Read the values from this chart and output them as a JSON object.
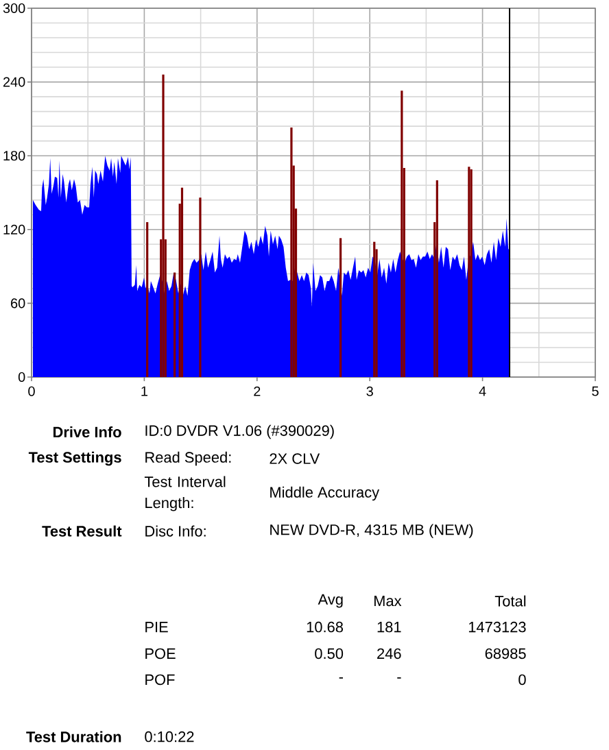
{
  "chart_data": {
    "type": "area",
    "xlim": [
      0,
      5
    ],
    "xticks": [
      0,
      1,
      2,
      3,
      4,
      5
    ],
    "ylim": [
      0,
      300
    ],
    "yticks": [
      0,
      60,
      120,
      180,
      240,
      300
    ],
    "grid": true,
    "series": [
      {
        "color": "#0000ff",
        "x": [
          0.012,
          0.036,
          0.065,
          0.085,
          0.093,
          0.105,
          0.126,
          0.138,
          0.154,
          0.166,
          0.178,
          0.195,
          0.207,
          0.227,
          0.239,
          0.247,
          0.26,
          0.276,
          0.288,
          0.308,
          0.328,
          0.341,
          0.357,
          0.377,
          0.393,
          0.41,
          0.43,
          0.45,
          0.47,
          0.491,
          0.511,
          0.523,
          0.539,
          0.552,
          0.564,
          0.58,
          0.592,
          0.612,
          0.633,
          0.653,
          0.673,
          0.693,
          0.706,
          0.722,
          0.734,
          0.754,
          0.766,
          0.787,
          0.795,
          0.815,
          0.835,
          0.856,
          0.868,
          0.88,
          0.888,
          0.896,
          0.916,
          0.929,
          0.937,
          0.957,
          0.977,
          0.998,
          1.01,
          1.026,
          1.046,
          1.058,
          1.079,
          1.099,
          1.119,
          1.14,
          1.16,
          1.18,
          1.2,
          1.221,
          1.241,
          1.261,
          1.281,
          1.302,
          1.322,
          1.342,
          1.363,
          1.383,
          1.403,
          1.423,
          1.444,
          1.464,
          1.484,
          1.505,
          1.525,
          1.545,
          1.565,
          1.586,
          1.606,
          1.626,
          1.646,
          1.667,
          1.679,
          1.695,
          1.715,
          1.735,
          1.756,
          1.776,
          1.796,
          1.817,
          1.829,
          1.849,
          1.869,
          1.89,
          1.91,
          1.93,
          1.95,
          1.971,
          1.991,
          2.011,
          2.032,
          2.052,
          2.072,
          2.092,
          2.105,
          2.121,
          2.141,
          2.161,
          2.182,
          2.194,
          2.214,
          2.235,
          2.255,
          2.275,
          2.295,
          2.315,
          2.336,
          2.356,
          2.376,
          2.397,
          2.417,
          2.437,
          2.457,
          2.478,
          2.486,
          2.498,
          2.518,
          2.538,
          2.559,
          2.579,
          2.599,
          2.62,
          2.64,
          2.66,
          2.68,
          2.701,
          2.721,
          2.741,
          2.753,
          2.77,
          2.79,
          2.81,
          2.83,
          2.851,
          2.871,
          2.883,
          2.903,
          2.924,
          2.944,
          2.964,
          2.985,
          3.005,
          3.025,
          3.045,
          3.066,
          3.086,
          3.106,
          3.127,
          3.147,
          3.167,
          3.187,
          3.208,
          3.228,
          3.248,
          3.268,
          3.289,
          3.309,
          3.329,
          3.35,
          3.37,
          3.39,
          3.41,
          3.431,
          3.451,
          3.471,
          3.491,
          3.512,
          3.532,
          3.552,
          3.573,
          3.593,
          3.613,
          3.633,
          3.654,
          3.674,
          3.694,
          3.714,
          3.735,
          3.755,
          3.775,
          3.796,
          3.816,
          3.836,
          3.856,
          3.877,
          3.897,
          3.917,
          3.937,
          3.958,
          3.978,
          3.998,
          4.019,
          4.039,
          4.059,
          4.079,
          4.1,
          4.12,
          4.14,
          4.16,
          4.18,
          4.201,
          4.213,
          4.229,
          4.237
        ],
        "values": [
          144,
          140,
          136,
          135,
          154,
          161,
          140,
          146,
          157,
          178,
          149,
          156,
          163,
          162,
          146,
          176,
          146,
          165,
          159,
          142,
          157,
          161,
          152,
          161,
          155,
          142,
          144,
          132,
          140,
          138,
          138,
          157,
          171,
          146,
          168,
          165,
          157,
          168,
          159,
          180,
          172,
          168,
          178,
          163,
          175,
          157,
          178,
          166,
          180,
          176,
          172,
          179,
          169,
          179,
          74,
          73,
          75,
          91,
          70,
          75,
          73,
          81,
          72,
          76,
          68,
          78,
          73,
          68,
          76,
          83,
          78,
          68,
          78,
          70,
          74,
          85,
          79,
          68,
          76,
          66,
          74,
          66,
          87,
          93,
          96,
          93,
          95,
          100,
          87,
          102,
          89,
          95,
          102,
          85,
          89,
          115,
          96,
          89,
          100,
          96,
          98,
          93,
          96,
          95,
          100,
          93,
          106,
          119,
          115,
          104,
          110,
          100,
          112,
          106,
          115,
          108,
          123,
          115,
          98,
          119,
          108,
          115,
          104,
          115,
          112,
          106,
          89,
          78,
          79,
          78,
          89,
          85,
          78,
          83,
          78,
          85,
          83,
          72,
          57,
          93,
          70,
          74,
          83,
          81,
          70,
          78,
          78,
          83,
          78,
          70,
          89,
          76,
          66,
          85,
          83,
          87,
          79,
          89,
          98,
          79,
          87,
          85,
          87,
          81,
          89,
          85,
          98,
          95,
          83,
          96,
          81,
          89,
          76,
          93,
          85,
          96,
          85,
          95,
          102,
          96,
          93,
          98,
          100,
          95,
          96,
          89,
          100,
          95,
          98,
          98,
          102,
          96,
          100,
          96,
          110,
          93,
          106,
          89,
          106,
          104,
          87,
          98,
          95,
          100,
          91,
          87,
          98,
          79,
          96,
          100,
          110,
          95,
          100,
          95,
          98,
          91,
          100,
          104,
          93,
          110,
          95,
          113,
          106,
          119,
          106,
          129,
          104,
          104
        ]
      },
      {
        "type": "bar",
        "color": "#800000",
        "x": [
          1.026,
          1.148,
          1.168,
          1.188,
          1.269,
          1.315,
          1.335,
          1.496,
          2.305,
          2.325,
          2.345,
          2.741,
          3.04,
          3.06,
          3.284,
          3.305,
          3.575,
          3.597,
          3.88,
          3.9
        ],
        "values": [
          126,
          112,
          246,
          112,
          85,
          141,
          154,
          146,
          203,
          172,
          137,
          113,
          110,
          104,
          233,
          170,
          126,
          160,
          171,
          169
        ]
      }
    ],
    "ref_lines": [
      {
        "axis": "x",
        "value": 4.24,
        "color": "#000000"
      }
    ],
    "annotations": [
      "Drive Info",
      "ID:0 DVDR V1.06 (#390029)",
      "Test Settings",
      "Read Speed:",
      "2X CLV",
      "Test Interval Length:",
      "Middle Accuracy",
      "Test Result",
      "Disc Info:",
      "NEW DVD-R, 4315 MB (NEW)",
      "Avg",
      "Max",
      "Total",
      "PIE",
      "10.68",
      "181",
      "1473123",
      "POE",
      "0.50",
      "246",
      "68985",
      "POF",
      "-",
      "-",
      "0",
      "Test Duration",
      "0:10:22"
    ]
  }
}
